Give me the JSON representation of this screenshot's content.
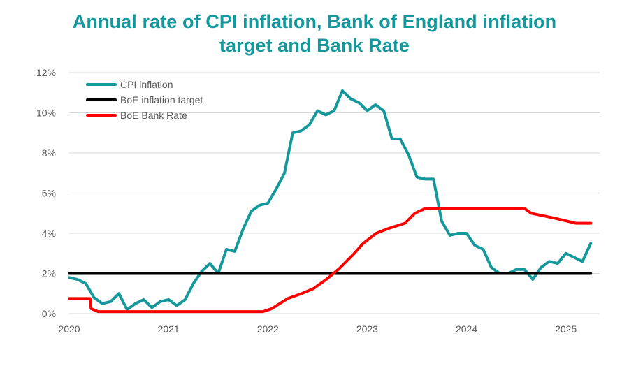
{
  "chart_data": {
    "type": "line",
    "title_line1": "Annual rate of CPI inflation, Bank of England inflation",
    "title_line2": "target and Bank Rate",
    "xlabel": "",
    "ylabel": "",
    "x_tick_labels": [
      "2020",
      "2021",
      "2022",
      "2023",
      "2024",
      "2025"
    ],
    "y_tick_labels": [
      "0%",
      "2%",
      "4%",
      "6%",
      "8%",
      "10%",
      "12%"
    ],
    "ylim": [
      0,
      12
    ],
    "xlim": [
      2020.0,
      2025.34
    ],
    "grid": "horizontal",
    "legend_position": "top-left",
    "series": [
      {
        "name": "CPI inflation",
        "color": "#14989c",
        "x": [
          2020.0,
          2020.083,
          2020.167,
          2020.25,
          2020.333,
          2020.417,
          2020.5,
          2020.583,
          2020.667,
          2020.75,
          2020.833,
          2020.917,
          2021.0,
          2021.083,
          2021.167,
          2021.25,
          2021.333,
          2021.417,
          2021.5,
          2021.583,
          2021.667,
          2021.75,
          2021.833,
          2021.917,
          2022.0,
          2022.083,
          2022.167,
          2022.25,
          2022.333,
          2022.417,
          2022.5,
          2022.583,
          2022.667,
          2022.75,
          2022.833,
          2022.917,
          2023.0,
          2023.083,
          2023.167,
          2023.25,
          2023.333,
          2023.417,
          2023.5,
          2023.583,
          2023.667,
          2023.75,
          2023.833,
          2023.917,
          2024.0,
          2024.083,
          2024.167,
          2024.25,
          2024.333,
          2024.417,
          2024.5,
          2024.583,
          2024.667,
          2024.75,
          2024.833,
          2024.917,
          2025.0,
          2025.083,
          2025.167,
          2025.25
        ],
        "values": [
          1.8,
          1.7,
          1.5,
          0.8,
          0.5,
          0.6,
          1.0,
          0.2,
          0.5,
          0.7,
          0.3,
          0.6,
          0.7,
          0.4,
          0.7,
          1.5,
          2.1,
          2.5,
          2.0,
          3.2,
          3.1,
          4.2,
          5.1,
          5.4,
          5.5,
          6.2,
          7.0,
          9.0,
          9.1,
          9.4,
          10.1,
          9.9,
          10.1,
          11.1,
          10.7,
          10.5,
          10.1,
          10.4,
          10.1,
          8.7,
          8.7,
          7.9,
          6.8,
          6.7,
          6.7,
          4.6,
          3.9,
          4.0,
          4.0,
          3.4,
          3.2,
          2.3,
          2.0,
          2.0,
          2.2,
          2.2,
          1.7,
          2.3,
          2.6,
          2.5,
          3.0,
          2.8,
          2.6,
          3.5
        ]
      },
      {
        "name": "BoE inflation target",
        "color": "#000000",
        "x": [
          2020.0,
          2025.25
        ],
        "values": [
          2.0,
          2.0
        ]
      },
      {
        "name": "BoE Bank Rate",
        "color": "#ff0000",
        "x": [
          2020.0,
          2020.21,
          2020.22,
          2020.29,
          2021.95,
          2022.04,
          2022.12,
          2022.2,
          2022.34,
          2022.46,
          2022.6,
          2022.72,
          2022.87,
          2022.96,
          2023.09,
          2023.22,
          2023.38,
          2023.48,
          2023.59,
          2023.71,
          2024.58,
          2024.65,
          2024.89,
          2025.1,
          2025.25
        ],
        "values": [
          0.75,
          0.75,
          0.25,
          0.1,
          0.1,
          0.25,
          0.5,
          0.75,
          1.0,
          1.25,
          1.75,
          2.25,
          3.0,
          3.5,
          4.0,
          4.25,
          4.5,
          5.0,
          5.25,
          5.25,
          5.25,
          5.0,
          4.75,
          4.5,
          4.5
        ]
      }
    ]
  }
}
